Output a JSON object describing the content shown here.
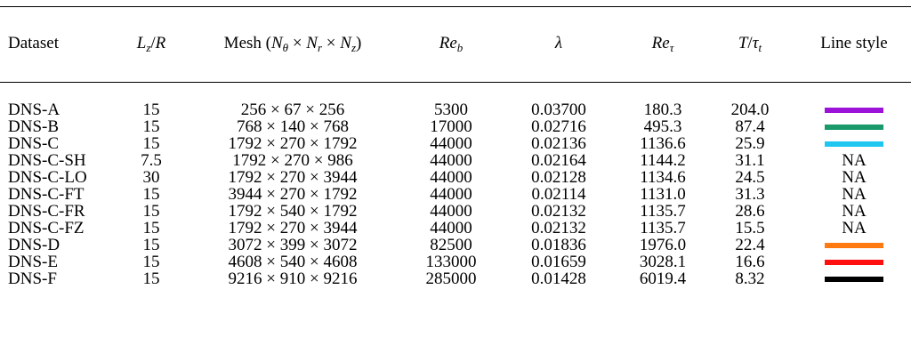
{
  "table": {
    "headers": {
      "dataset": "Dataset",
      "lz_r": "L_z/R",
      "mesh": "Mesh (N_θ × N_r × N_z)",
      "re_b": "Re_b",
      "lambda": "λ",
      "re_tau": "Re_τ",
      "t_tau": "T/τ_t",
      "line_style": "Line style"
    },
    "rows": [
      {
        "dataset": "DNS-A",
        "lz_r": "15",
        "mesh": "256 × 67 × 256",
        "re_b": "5300",
        "lambda": "0.03700",
        "re_tau": "180.3",
        "t_tau": "204.0",
        "line_style": "",
        "color": "#9b12d8"
      },
      {
        "dataset": "DNS-B",
        "lz_r": "15",
        "mesh": "768 × 140 × 768",
        "re_b": "17000",
        "lambda": "0.02716",
        "re_tau": "495.3",
        "t_tau": "87.4",
        "line_style": "",
        "color": "#1a9a6b"
      },
      {
        "dataset": "DNS-C",
        "lz_r": "15",
        "mesh": "1792 × 270 × 1792",
        "re_b": "44000",
        "lambda": "0.02136",
        "re_tau": "1136.6",
        "t_tau": "25.9",
        "line_style": "",
        "color": "#1ec6f0"
      },
      {
        "dataset": "DNS-C-SH",
        "lz_r": "7.5",
        "mesh": "1792 × 270 × 986",
        "re_b": "44000",
        "lambda": "0.02164",
        "re_tau": "1144.2",
        "t_tau": "31.1",
        "line_style": "NA",
        "color": ""
      },
      {
        "dataset": "DNS-C-LO",
        "lz_r": "30",
        "mesh": "1792 × 270 × 3944",
        "re_b": "44000",
        "lambda": "0.02128",
        "re_tau": "1134.6",
        "t_tau": "24.5",
        "line_style": "NA",
        "color": ""
      },
      {
        "dataset": "DNS-C-FT",
        "lz_r": "15",
        "mesh": "3944 × 270 × 1792",
        "re_b": "44000",
        "lambda": "0.02114",
        "re_tau": "1131.0",
        "t_tau": "31.3",
        "line_style": "NA",
        "color": ""
      },
      {
        "dataset": "DNS-C-FR",
        "lz_r": "15",
        "mesh": "1792 × 540 × 1792",
        "re_b": "44000",
        "lambda": "0.02132",
        "re_tau": "1135.7",
        "t_tau": "28.6",
        "line_style": "NA",
        "color": ""
      },
      {
        "dataset": "DNS-C-FZ",
        "lz_r": "15",
        "mesh": "1792 × 270 × 3944",
        "re_b": "44000",
        "lambda": "0.02132",
        "re_tau": "1135.7",
        "t_tau": "15.5",
        "line_style": "NA",
        "color": ""
      },
      {
        "dataset": "DNS-D",
        "lz_r": "15",
        "mesh": "3072 × 399 × 3072",
        "re_b": "82500",
        "lambda": "0.01836",
        "re_tau": "1976.0",
        "t_tau": "22.4",
        "line_style": "",
        "color": "#ff7a10"
      },
      {
        "dataset": "DNS-E",
        "lz_r": "15",
        "mesh": "4608 × 540 × 4608",
        "re_b": "133000",
        "lambda": "0.01659",
        "re_tau": "3028.1",
        "t_tau": "16.6",
        "line_style": "",
        "color": "#ff1010"
      },
      {
        "dataset": "DNS-F",
        "lz_r": "15",
        "mesh": "9216 × 910 × 9216",
        "re_b": "285000",
        "lambda": "0.01428",
        "re_tau": "6019.4",
        "t_tau": "8.32",
        "line_style": "",
        "color": "#000000"
      }
    ]
  }
}
